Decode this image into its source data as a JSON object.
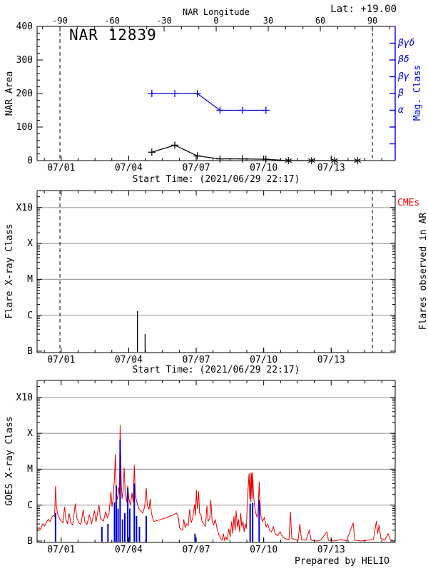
{
  "page": {
    "lat_label": "Lat: +19.00",
    "prepared_by": "Prepared by HELIO"
  },
  "colors": {
    "blue": "#0000dd",
    "red": "#e60000",
    "cme_red": "#ff0000",
    "grid": "#a0a0a0",
    "black": "#000000"
  },
  "time_axis": {
    "start_label": "Start Time: (2021/06/29 22:17)",
    "tick_labels": [
      "07/01",
      "07/04",
      "07/07",
      "07/10",
      "07/13"
    ],
    "tick_t": [
      1.0715,
      4.0715,
      7.0715,
      10.0715,
      13.0715
    ],
    "minor_step_days": 0.75,
    "t_max": 15.92,
    "vlines_t": [
      1.015,
      14.904
    ]
  },
  "chart_data": [
    {
      "type": "line",
      "title": "NAR 12839",
      "ylabel": "NAR Area",
      "ylim": [
        0,
        400
      ],
      "yticks": [
        0,
        100,
        200,
        300,
        400
      ],
      "y_minor_step": 20,
      "top_axis": {
        "label": "NAR Longitude",
        "tick_labels": [
          "-90",
          "-60",
          "-30",
          "0",
          "30",
          "60",
          "90"
        ],
        "tick_t": [
          1.015,
          3.33,
          5.645,
          7.96,
          10.274,
          12.589,
          14.904
        ],
        "minor_step_t": 0.7716
      },
      "right_axis": {
        "label": "Mag. Class",
        "ticks": [
          {
            "label": "βγδ",
            "value": 350
          },
          {
            "label": "βδ",
            "value": 300
          },
          {
            "label": "βγ",
            "value": 250
          },
          {
            "label": "β",
            "value": 200
          },
          {
            "label": "α",
            "value": 150
          },
          {
            "label": "",
            "value": 100
          },
          {
            "label": "",
            "value": 50
          }
        ]
      },
      "series": [
        {
          "name": "nar-area",
          "color": "black",
          "marker": "plus",
          "points": [
            [
              5.1,
              25
            ],
            [
              6.12,
              46
            ],
            [
              7.12,
              14
            ],
            [
              8.13,
              5
            ],
            [
              9.13,
              5
            ],
            [
              10.17,
              4
            ]
          ]
        },
        {
          "name": "nar-area-zero",
          "color": "black",
          "marker": "star",
          "points": [
            [
              11.17,
              0
            ],
            [
              12.2,
              0
            ],
            [
              13.22,
              0
            ],
            [
              14.24,
              0
            ]
          ]
        },
        {
          "name": "mag-class",
          "color": "blue",
          "marker": "plus",
          "points": [
            [
              5.1,
              200
            ],
            [
              6.12,
              200
            ],
            [
              7.12,
              200
            ],
            [
              8.13,
              150
            ],
            [
              9.13,
              150
            ],
            [
              10.17,
              150
            ]
          ]
        }
      ]
    },
    {
      "type": "spikes",
      "ylabel": "Flare X-ray Class",
      "yticks": [
        {
          "label": "B",
          "flux": 1e-07
        },
        {
          "label": "C",
          "flux": 1e-06
        },
        {
          "label": "M",
          "flux": 1e-05
        },
        {
          "label": "X",
          "flux": 0.0001
        },
        {
          "label": "X10",
          "flux": 0.001
        }
      ],
      "right_label_red": "CMEs",
      "right_label": "Flares observed in AR",
      "spikes": [
        {
          "t": 4.46,
          "flux": 1.3e-06
        },
        {
          "t": 4.8,
          "flux": 3e-07
        }
      ]
    },
    {
      "type": "line_spikes",
      "ylabel": "GOES X-ray Class",
      "yticks": [
        {
          "label": "B",
          "flux": 1e-07
        },
        {
          "label": "C",
          "flux": 1e-06
        },
        {
          "label": "M",
          "flux": 1e-05
        },
        {
          "label": "X",
          "flux": 0.0001
        },
        {
          "label": "X10",
          "flux": 0.001
        }
      ],
      "flares_blue": [
        {
          "t": 0.82,
          "flux": 6e-07
        },
        {
          "t": 2.88,
          "flux": 2.5e-07
        },
        {
          "t": 3.15,
          "flux": 3e-07
        },
        {
          "t": 3.44,
          "flux": 1.2e-06
        },
        {
          "t": 3.52,
          "flux": 3.5e-06
        },
        {
          "t": 3.6,
          "flux": 8e-07
        },
        {
          "t": 3.69,
          "flux": 6.5e-05
        },
        {
          "t": 3.8,
          "flux": 4e-07
        },
        {
          "t": 3.9,
          "flux": 6e-07
        },
        {
          "t": 4.03,
          "flux": 3e-06
        },
        {
          "t": 4.12,
          "flux": 8e-07
        },
        {
          "t": 4.32,
          "flux": 4e-06
        },
        {
          "t": 4.42,
          "flux": 5e-07
        },
        {
          "t": 4.55,
          "flux": 2.5e-07
        },
        {
          "t": 4.85,
          "flux": 5e-07
        },
        {
          "t": 7.02,
          "flux": 1.6e-07
        },
        {
          "t": 9.47,
          "flux": 1.1e-06
        },
        {
          "t": 9.58,
          "flux": 1.15e-06
        },
        {
          "t": 9.87,
          "flux": 1.4e-06
        }
      ],
      "xray_red": [
        [
          0.0,
          2e-07
        ],
        [
          0.08,
          2.4e-07
        ],
        [
          0.15,
          2.1e-07
        ],
        [
          0.25,
          3e-07
        ],
        [
          0.33,
          2.6e-07
        ],
        [
          0.42,
          3.4e-07
        ],
        [
          0.5,
          4e-07
        ],
        [
          0.58,
          3.5e-07
        ],
        [
          0.65,
          4.6e-07
        ],
        [
          0.72,
          5.2e-07
        ],
        [
          0.78,
          4.8e-07
        ],
        [
          0.82,
          3.4e-06
        ],
        [
          0.86,
          9e-07
        ],
        [
          0.92,
          5.5e-07
        ],
        [
          1.0,
          4.2e-07
        ],
        [
          1.08,
          3.6e-07
        ],
        [
          1.15,
          3.2e-07
        ],
        [
          1.22,
          9e-07
        ],
        [
          1.28,
          4e-07
        ],
        [
          1.35,
          3e-07
        ],
        [
          1.42,
          6e-07
        ],
        [
          1.5,
          3.2e-07
        ],
        [
          1.58,
          2.8e-07
        ],
        [
          1.7,
          1.1e-06
        ],
        [
          1.76,
          4.5e-07
        ],
        [
          1.85,
          3.2e-07
        ],
        [
          1.95,
          2.9e-07
        ],
        [
          2.05,
          7.5e-07
        ],
        [
          2.12,
          3.4e-07
        ],
        [
          2.22,
          2.9e-07
        ],
        [
          2.32,
          5.5e-07
        ],
        [
          2.42,
          3e-07
        ],
        [
          2.55,
          7e-07
        ],
        [
          2.62,
          3.4e-07
        ],
        [
          2.75,
          1e-06
        ],
        [
          2.82,
          4.2e-07
        ],
        [
          2.95,
          3.6e-07
        ],
        [
          3.05,
          6.5e-07
        ],
        [
          3.12,
          4.5e-07
        ],
        [
          3.2,
          6e-07
        ],
        [
          3.28,
          2.4e-06
        ],
        [
          3.33,
          9e-07
        ],
        [
          3.38,
          1.6e-06
        ],
        [
          3.44,
          6e-06
        ],
        [
          3.48,
          2.7e-05
        ],
        [
          3.52,
          2.2e-06
        ],
        [
          3.58,
          1.4e-06
        ],
        [
          3.62,
          3.2e-06
        ],
        [
          3.66,
          2e-06
        ],
        [
          3.69,
          0.00017
        ],
        [
          3.74,
          4e-06
        ],
        [
          3.78,
          1.5e-06
        ],
        [
          3.82,
          2.5e-06
        ],
        [
          3.87,
          1.1e-05
        ],
        [
          3.92,
          2e-06
        ],
        [
          3.98,
          1.2e-06
        ],
        [
          4.03,
          3.5e-06
        ],
        [
          4.08,
          1.5e-06
        ],
        [
          4.15,
          1e-06
        ],
        [
          4.22,
          2.2e-06
        ],
        [
          4.27,
          1.2e-06
        ],
        [
          4.32,
          1.3e-05
        ],
        [
          4.37,
          1.8e-06
        ],
        [
          4.45,
          1.1e-06
        ],
        [
          4.52,
          8e-07
        ],
        [
          4.6,
          7e-07
        ],
        [
          4.7,
          6e-07
        ],
        [
          4.78,
          9e-07
        ],
        [
          4.85,
          3e-06
        ],
        [
          4.9,
          1e-06
        ],
        [
          4.97,
          7.5e-07
        ],
        [
          5.03,
          1.5e-06
        ],
        [
          5.08,
          6e-07
        ],
        [
          5.18,
          3.5e-07
        ],
        [
          5.45,
          3.9e-07
        ],
        [
          5.75,
          4.5e-07
        ],
        [
          6.0,
          5.2e-07
        ],
        [
          6.2,
          6e-07
        ],
        [
          6.28,
          4.6e-07
        ],
        [
          6.33,
          2.4e-07
        ],
        [
          6.4,
          2.1e-07
        ],
        [
          6.47,
          2e-07
        ],
        [
          6.52,
          4e-07
        ],
        [
          6.58,
          2.4e-07
        ],
        [
          6.65,
          3e-07
        ],
        [
          6.72,
          2.7e-07
        ],
        [
          6.78,
          7.6e-07
        ],
        [
          6.85,
          3.2e-07
        ],
        [
          6.92,
          4.5e-07
        ],
        [
          7.0,
          1.05e-06
        ],
        [
          7.04,
          5e-07
        ],
        [
          7.08,
          2.6e-06
        ],
        [
          7.12,
          8e-07
        ],
        [
          7.18,
          2.4e-06
        ],
        [
          7.22,
          6e-07
        ],
        [
          7.28,
          5.5e-07
        ],
        [
          7.33,
          3.5e-07
        ],
        [
          7.4,
          3e-07
        ],
        [
          7.48,
          2.6e-07
        ],
        [
          7.55,
          9.5e-07
        ],
        [
          7.6,
          3.5e-07
        ],
        [
          7.68,
          4.5e-07
        ],
        [
          7.72,
          1.4e-06
        ],
        [
          7.78,
          3.5e-07
        ],
        [
          7.85,
          2.8e-07
        ],
        [
          7.92,
          4e-07
        ],
        [
          8.0,
          2.2e-07
        ],
        [
          8.08,
          1.5e-07
        ],
        [
          8.15,
          1.2e-07
        ],
        [
          8.22,
          1.05e-07
        ],
        [
          8.28,
          1.6e-07
        ],
        [
          8.33,
          1.05e-07
        ],
        [
          8.4,
          1.3e-07
        ],
        [
          8.45,
          1.05e-07
        ],
        [
          8.52,
          2.2e-07
        ],
        [
          8.58,
          1.3e-07
        ],
        [
          8.65,
          3.5e-07
        ],
        [
          8.7,
          1.6e-07
        ],
        [
          8.75,
          5e-07
        ],
        [
          8.8,
          2e-07
        ],
        [
          8.85,
          7e-07
        ],
        [
          8.9,
          2.4e-07
        ],
        [
          8.95,
          4e-07
        ],
        [
          9.0,
          1.8e-07
        ],
        [
          9.05,
          6e-07
        ],
        [
          9.1,
          2.5e-07
        ],
        [
          9.15,
          3.5e-07
        ],
        [
          9.2,
          1.8e-07
        ],
        [
          9.25,
          3e-07
        ],
        [
          9.3,
          2.2e-07
        ],
        [
          9.35,
          1.4e-06
        ],
        [
          9.42,
          7.5e-06
        ],
        [
          9.45,
          1.5e-06
        ],
        [
          9.47,
          8e-06
        ],
        [
          9.5,
          1.2e-06
        ],
        [
          9.53,
          7.8e-06
        ],
        [
          9.56,
          1.5e-06
        ],
        [
          9.58,
          8.3e-06
        ],
        [
          9.62,
          2e-06
        ],
        [
          9.66,
          1e-06
        ],
        [
          9.72,
          6e-07
        ],
        [
          9.78,
          4.5e-07
        ],
        [
          9.83,
          8e-07
        ],
        [
          9.87,
          4.5e-06
        ],
        [
          9.9,
          1.5e-06
        ],
        [
          9.95,
          5e-07
        ],
        [
          10.02,
          3.5e-07
        ],
        [
          10.1,
          4.5e-07
        ],
        [
          10.18,
          2.5e-07
        ],
        [
          10.25,
          3e-07
        ],
        [
          10.33,
          2e-07
        ],
        [
          10.42,
          1.8e-07
        ],
        [
          10.5,
          2.5e-07
        ],
        [
          10.58,
          1.6e-07
        ],
        [
          10.68,
          1.4e-07
        ],
        [
          10.8,
          1.8e-07
        ],
        [
          10.92,
          1.3e-07
        ],
        [
          11.05,
          1.15e-07
        ],
        [
          11.2,
          1.1e-07
        ],
        [
          11.26,
          6.5e-07
        ],
        [
          11.32,
          1.2e-07
        ],
        [
          11.45,
          1.1e-07
        ],
        [
          11.6,
          1.05e-07
        ],
        [
          11.68,
          3e-07
        ],
        [
          11.75,
          1.1e-07
        ],
        [
          11.95,
          1.05e-07
        ],
        [
          12.1,
          2e-07
        ],
        [
          12.18,
          1.05e-07
        ],
        [
          12.4,
          1e-07
        ],
        [
          12.6,
          1.05e-07
        ],
        [
          12.88,
          1.8e-07
        ],
        [
          12.95,
          1.05e-07
        ],
        [
          13.2,
          1e-07
        ],
        [
          13.5,
          1.1e-07
        ],
        [
          13.75,
          1e-07
        ],
        [
          14.05,
          3.2e-07
        ],
        [
          14.12,
          1.05e-07
        ],
        [
          14.4,
          1e-07
        ],
        [
          14.7,
          1.05e-07
        ],
        [
          14.95,
          1.1e-07
        ],
        [
          15.08,
          3.6e-07
        ],
        [
          15.14,
          1.6e-07
        ],
        [
          15.2,
          2.8e-07
        ],
        [
          15.28,
          1.2e-07
        ],
        [
          15.45,
          1.05e-07
        ],
        [
          15.6,
          1.6e-07
        ],
        [
          15.7,
          1.1e-07
        ],
        [
          15.85,
          1e-07
        ]
      ]
    }
  ]
}
